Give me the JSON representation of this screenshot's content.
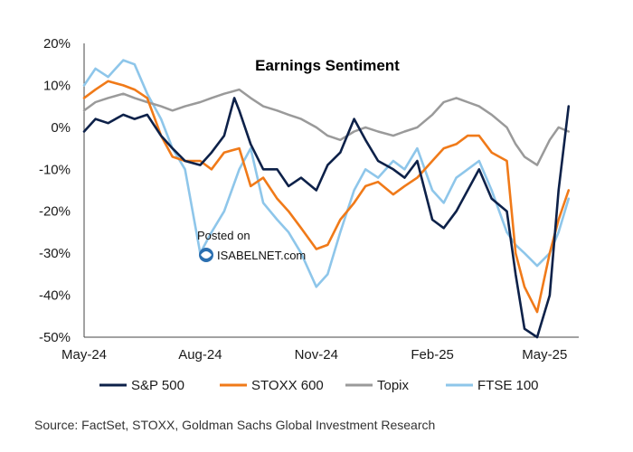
{
  "chart_data": {
    "type": "line",
    "title": "Earnings Sentiment",
    "xlabel": "",
    "ylabel": "",
    "x_ticks": [
      "May-24",
      "Aug-24",
      "Nov-24",
      "Feb-25",
      "May-25"
    ],
    "y_ticks": [
      "20%",
      "10%",
      "0%",
      "-10%",
      "-20%",
      "-30%",
      "-40%",
      "-50%"
    ],
    "ylim": [
      -50,
      20
    ],
    "grid": false,
    "legend_position": "bottom",
    "series": [
      {
        "name": "S&P 500",
        "color": "#0d2149",
        "x": [
          "2024-05-01",
          "2024-05-10",
          "2024-05-20",
          "2024-06-01",
          "2024-06-10",
          "2024-06-20",
          "2024-07-01",
          "2024-07-10",
          "2024-07-20",
          "2024-08-01",
          "2024-08-10",
          "2024-08-20",
          "2024-08-28",
          "2024-09-01",
          "2024-09-10",
          "2024-09-20",
          "2024-10-01",
          "2024-10-10",
          "2024-10-20",
          "2024-11-01",
          "2024-11-10",
          "2024-11-20",
          "2024-12-01",
          "2024-12-10",
          "2024-12-20",
          "2025-01-01",
          "2025-01-10",
          "2025-01-20",
          "2025-02-01",
          "2025-02-10",
          "2025-02-20",
          "2025-03-01",
          "2025-03-10",
          "2025-03-20",
          "2025-04-01",
          "2025-04-08",
          "2025-04-15",
          "2025-04-25",
          "2025-05-05",
          "2025-05-12",
          "2025-05-20"
        ],
        "values": [
          -1,
          2,
          1,
          3,
          2,
          3,
          -2,
          -5,
          -8,
          -9,
          -6,
          -2,
          7,
          4,
          -4,
          -10,
          -10,
          -14,
          -12,
          -15,
          -9,
          -6,
          2,
          -3,
          -8,
          -10,
          -12,
          -8,
          -22,
          -24,
          -20,
          -15,
          -10,
          -17,
          -20,
          -35,
          -48,
          -50,
          -40,
          -15,
          5
        ]
      },
      {
        "name": "STOXX 600",
        "color": "#f07a19",
        "x": [
          "2024-05-01",
          "2024-05-10",
          "2024-05-20",
          "2024-06-01",
          "2024-06-10",
          "2024-06-20",
          "2024-07-01",
          "2024-07-10",
          "2024-07-20",
          "2024-08-01",
          "2024-08-10",
          "2024-08-20",
          "2024-09-01",
          "2024-09-10",
          "2024-09-20",
          "2024-10-01",
          "2024-10-10",
          "2024-10-20",
          "2024-11-01",
          "2024-11-10",
          "2024-11-20",
          "2024-12-01",
          "2024-12-10",
          "2024-12-20",
          "2025-01-01",
          "2025-01-10",
          "2025-01-20",
          "2025-02-01",
          "2025-02-10",
          "2025-02-20",
          "2025-03-01",
          "2025-03-10",
          "2025-03-20",
          "2025-04-01",
          "2025-04-08",
          "2025-04-15",
          "2025-04-25",
          "2025-05-05",
          "2025-05-12",
          "2025-05-20"
        ],
        "values": [
          7,
          9,
          11,
          10,
          9,
          7,
          -2,
          -7,
          -8,
          -8,
          -10,
          -6,
          -5,
          -14,
          -12,
          -17,
          -20,
          -24,
          -29,
          -28,
          -22,
          -18,
          -14,
          -13,
          -16,
          -14,
          -12,
          -8,
          -5,
          -4,
          -2,
          -2,
          -6,
          -8,
          -30,
          -38,
          -44,
          -30,
          -22,
          -15
        ]
      },
      {
        "name": "Topix",
        "color": "#9a9a9a",
        "x": [
          "2024-05-01",
          "2024-05-10",
          "2024-05-20",
          "2024-06-01",
          "2024-06-10",
          "2024-06-20",
          "2024-07-01",
          "2024-07-10",
          "2024-07-20",
          "2024-08-01",
          "2024-08-10",
          "2024-08-20",
          "2024-09-01",
          "2024-09-10",
          "2024-09-20",
          "2024-10-01",
          "2024-10-10",
          "2024-10-20",
          "2024-11-01",
          "2024-11-10",
          "2024-11-20",
          "2024-12-01",
          "2024-12-10",
          "2024-12-20",
          "2025-01-01",
          "2025-01-10",
          "2025-01-20",
          "2025-02-01",
          "2025-02-10",
          "2025-02-20",
          "2025-03-01",
          "2025-03-10",
          "2025-03-20",
          "2025-04-01",
          "2025-04-08",
          "2025-04-15",
          "2025-04-25",
          "2025-05-05",
          "2025-05-12",
          "2025-05-20"
        ],
        "values": [
          4,
          6,
          7,
          8,
          7,
          6,
          5,
          4,
          5,
          6,
          7,
          8,
          9,
          7,
          5,
          4,
          3,
          2,
          0,
          -2,
          -3,
          -1,
          0,
          -1,
          -2,
          -1,
          0,
          3,
          6,
          7,
          6,
          5,
          3,
          0,
          -4,
          -7,
          -9,
          -3,
          0,
          -1
        ]
      },
      {
        "name": "FTSE 100",
        "color": "#8ec6ea",
        "x": [
          "2024-05-01",
          "2024-05-10",
          "2024-05-20",
          "2024-06-01",
          "2024-06-10",
          "2024-06-20",
          "2024-07-01",
          "2024-07-10",
          "2024-07-20",
          "2024-08-01",
          "2024-08-10",
          "2024-08-20",
          "2024-09-01",
          "2024-09-10",
          "2024-09-20",
          "2024-10-01",
          "2024-10-10",
          "2024-10-20",
          "2024-11-01",
          "2024-11-10",
          "2024-11-20",
          "2024-12-01",
          "2024-12-10",
          "2024-12-20",
          "2025-01-01",
          "2025-01-10",
          "2025-01-20",
          "2025-02-01",
          "2025-02-10",
          "2025-02-20",
          "2025-03-01",
          "2025-03-10",
          "2025-03-20",
          "2025-04-01",
          "2025-04-08",
          "2025-04-15",
          "2025-04-25",
          "2025-05-05",
          "2025-05-12",
          "2025-05-20"
        ],
        "values": [
          10,
          14,
          12,
          16,
          15,
          8,
          2,
          -5,
          -10,
          -30,
          -25,
          -20,
          -10,
          -5,
          -18,
          -22,
          -25,
          -30,
          -38,
          -35,
          -25,
          -15,
          -10,
          -12,
          -8,
          -10,
          -5,
          -15,
          -18,
          -12,
          -10,
          -8,
          -15,
          -25,
          -28,
          -30,
          -33,
          -30,
          -25,
          -17
        ]
      }
    ]
  },
  "watermark": {
    "line1": "Posted on",
    "line2": "ISABELNET.com"
  },
  "source": "Source: FactSet, STOXX, Goldman Sachs Global Investment Research"
}
